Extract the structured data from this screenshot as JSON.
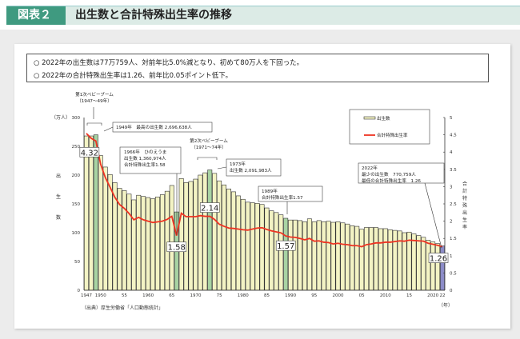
{
  "header": {
    "tag": "図表２",
    "title": "出生数と合計特殊出生率の推移"
  },
  "summary": [
    "○  2022年の出生数は77万759人、対前年比5.0%減となり、初めて80万人を下回った。",
    "○  2022年の合計特殊出生率は1.26、前年比0.05ポイント低下。"
  ],
  "colors": {
    "bar": "#f3f3c4",
    "bar_highlight": "#a8d3a3",
    "bar_latest": "#8c8cc8",
    "line": "#ee3322"
  },
  "chart_data": {
    "type": "bar+line",
    "ylabel_left": "出生数",
    "yunit_left": "（万人）",
    "ylabel_right": "合計特殊出生率",
    "xunit": "（年）",
    "ylim_left": [
      0,
      300
    ],
    "ylim_right": [
      0,
      5
    ],
    "yticks_left": [
      "0",
      "50",
      "100",
      "150",
      "200",
      "250",
      "300"
    ],
    "yticks_right": [
      "0",
      "0.5",
      "1",
      "1.5",
      "2",
      "2.5",
      "3",
      "3.5",
      "4",
      "4.5",
      "5"
    ],
    "xticks": [
      {
        "year": 1947,
        "label": "1947"
      },
      {
        "year": 1950,
        "label": "1950"
      },
      {
        "year": 1955,
        "label": "55"
      },
      {
        "year": 1960,
        "label": "1960"
      },
      {
        "year": 1965,
        "label": "65"
      },
      {
        "year": 1970,
        "label": "1970"
      },
      {
        "year": 1975,
        "label": "75"
      },
      {
        "year": 1980,
        "label": "1980"
      },
      {
        "year": 1985,
        "label": "85"
      },
      {
        "year": 1990,
        "label": "1990"
      },
      {
        "year": 1995,
        "label": "95"
      },
      {
        "year": 2000,
        "label": "2000"
      },
      {
        "year": 2005,
        "label": "05"
      },
      {
        "year": 2010,
        "label": "2010"
      },
      {
        "year": 2015,
        "label": "15"
      },
      {
        "year": 2020,
        "label": "2020"
      },
      {
        "year": 2022,
        "label": "22"
      }
    ],
    "legend": {
      "placement": "top-right",
      "items": [
        "出生数",
        "合計特殊出生率"
      ]
    },
    "years_start": 1947,
    "births": [
      268,
      268,
      270,
      234,
      214,
      201,
      187,
      177,
      173,
      167,
      157,
      165,
      163,
      161,
      159,
      162,
      166,
      172,
      182,
      136,
      194,
      187,
      189,
      193,
      200,
      204,
      209,
      203,
      190,
      183,
      176,
      171,
      164,
      158,
      153,
      152,
      151,
      149,
      143,
      138,
      135,
      131,
      125,
      122,
      122,
      121,
      119,
      124,
      119,
      121,
      119,
      120,
      118,
      119,
      117,
      115,
      112,
      111,
      106,
      109,
      109,
      109,
      107,
      107,
      105,
      104,
      103,
      100,
      101,
      98,
      95,
      92,
      87,
      84,
      81,
      77
    ],
    "tfr": [
      4.54,
      4.4,
      4.32,
      3.65,
      3.26,
      2.98,
      2.69,
      2.48,
      2.37,
      2.22,
      2.04,
      2.11,
      2.04,
      2.0,
      1.96,
      1.98,
      2.0,
      2.05,
      2.14,
      1.58,
      2.23,
      2.13,
      2.13,
      2.13,
      2.16,
      2.14,
      2.14,
      2.05,
      1.91,
      1.85,
      1.8,
      1.79,
      1.77,
      1.75,
      1.74,
      1.77,
      1.8,
      1.81,
      1.76,
      1.72,
      1.69,
      1.66,
      1.57,
      1.54,
      1.53,
      1.5,
      1.46,
      1.5,
      1.42,
      1.43,
      1.39,
      1.38,
      1.34,
      1.36,
      1.33,
      1.32,
      1.29,
      1.29,
      1.26,
      1.32,
      1.34,
      1.37,
      1.37,
      1.39,
      1.39,
      1.41,
      1.43,
      1.42,
      1.45,
      1.44,
      1.43,
      1.42,
      1.36,
      1.33,
      1.3,
      1.26
    ],
    "highlight_years": [
      1949,
      1966,
      1973,
      1989
    ],
    "latest_year": 2022,
    "value_labels": [
      {
        "year": 1949,
        "text": "4.32"
      },
      {
        "year": 1966,
        "text": "1.58"
      },
      {
        "year": 1973,
        "text": "2.14"
      },
      {
        "year": 1989,
        "text": "1.57"
      },
      {
        "year": 2022,
        "text": "1.26"
      }
    ],
    "annotations": {
      "boom1": [
        "第1次ベビーブーム",
        "（1947～49年）"
      ],
      "y1949": "1949年　最高の出生数 2,696,638人",
      "y1966": [
        "1966年　ひのえうま",
        "出生数 1,360,974人",
        "合計特殊出生率1.58"
      ],
      "boom2": [
        "第2次ベビーブーム",
        "（1971～74年）"
      ],
      "y1973": [
        "1973年",
        "出生数 2,091,983人"
      ],
      "y1989": [
        "1989年",
        "合計特殊出生率1.57"
      ],
      "y2022": [
        "2022年",
        "最少の出生数　770,759人",
        "最低の合計特殊出生率　1.26"
      ]
    },
    "source": "（出典）厚生労働省「人口動態統計」"
  }
}
